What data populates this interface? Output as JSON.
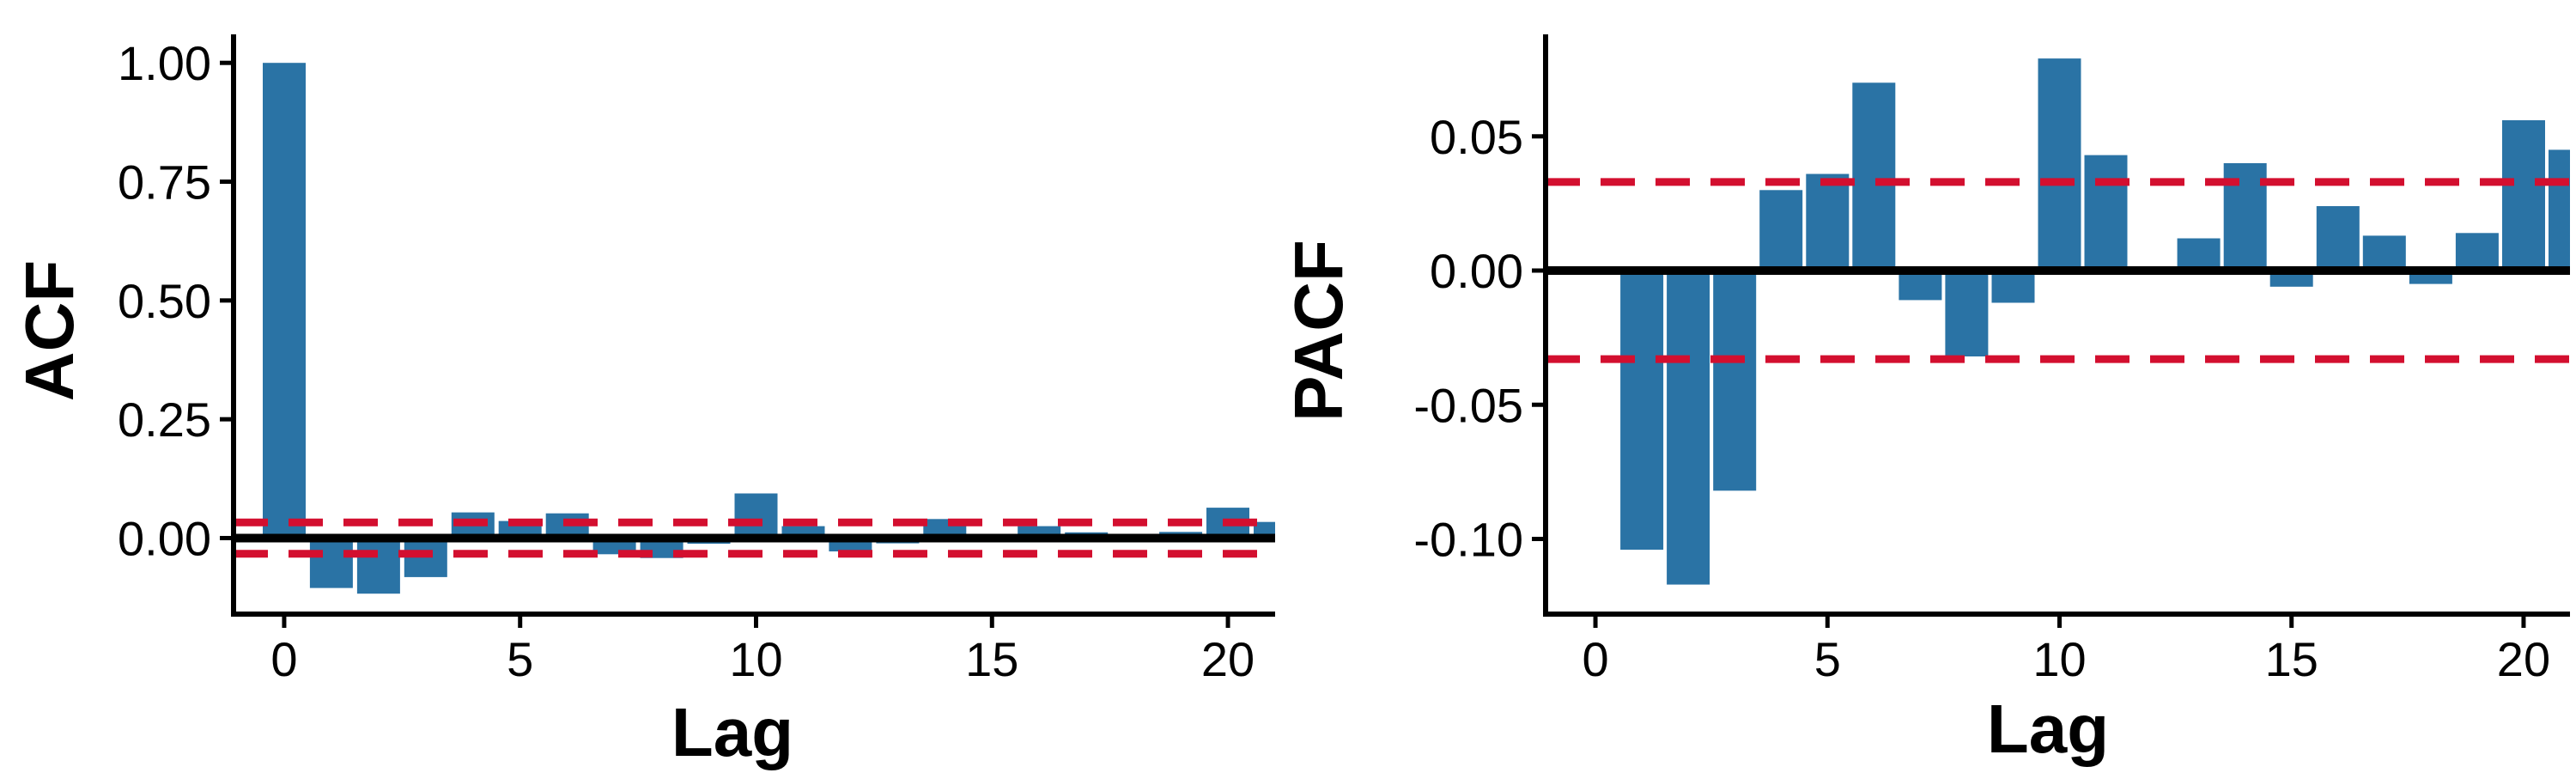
{
  "colors": {
    "bar": "#2a73a5",
    "zero_line": "#000000",
    "bound": "#d30f2f",
    "axis": "#000000",
    "background": "#ffffff"
  },
  "chart_data": [
    {
      "type": "bar",
      "xlabel": "Lag",
      "ylabel": "ACF",
      "x": [
        0,
        1,
        2,
        3,
        4,
        5,
        6,
        7,
        8,
        9,
        10,
        11,
        12,
        13,
        14,
        15,
        16,
        17,
        18,
        19,
        20,
        21
      ],
      "values": [
        1.0,
        -0.105,
        -0.117,
        -0.082,
        0.054,
        0.036,
        0.052,
        -0.034,
        -0.042,
        -0.012,
        0.094,
        0.025,
        -0.028,
        -0.011,
        0.04,
        -0.007,
        0.025,
        0.012,
        -0.006,
        0.013,
        0.064,
        0.034
      ],
      "confidence_bound": 0.033,
      "xlim": [
        -1,
        21
      ],
      "ylim": [
        -0.16,
        1.06
      ],
      "xticks": [
        "0",
        "5",
        "10",
        "15",
        "20"
      ],
      "yticks": [
        "0.00",
        "0.25",
        "0.50",
        "0.75",
        "1.00"
      ],
      "grid": false,
      "legend": "none"
    },
    {
      "type": "bar",
      "xlabel": "Lag",
      "ylabel": "PACF",
      "x": [
        1,
        2,
        3,
        4,
        5,
        6,
        7,
        8,
        9,
        10,
        11,
        12,
        13,
        14,
        15,
        16,
        17,
        18,
        19,
        20,
        21
      ],
      "values": [
        -0.104,
        -0.117,
        -0.082,
        0.03,
        0.036,
        0.07,
        -0.011,
        -0.032,
        -0.012,
        0.079,
        0.043,
        0.0,
        0.012,
        0.04,
        -0.006,
        0.024,
        0.013,
        -0.005,
        0.014,
        0.056,
        0.045
      ],
      "confidence_bound": 0.033,
      "xlim": [
        -1,
        21
      ],
      "ylim": [
        -0.128,
        0.088
      ],
      "xticks": [
        "0",
        "5",
        "10",
        "15",
        "20"
      ],
      "yticks": [
        "-0.10",
        "-0.05",
        "0.00",
        "0.05"
      ],
      "grid": false,
      "legend": "none"
    }
  ]
}
